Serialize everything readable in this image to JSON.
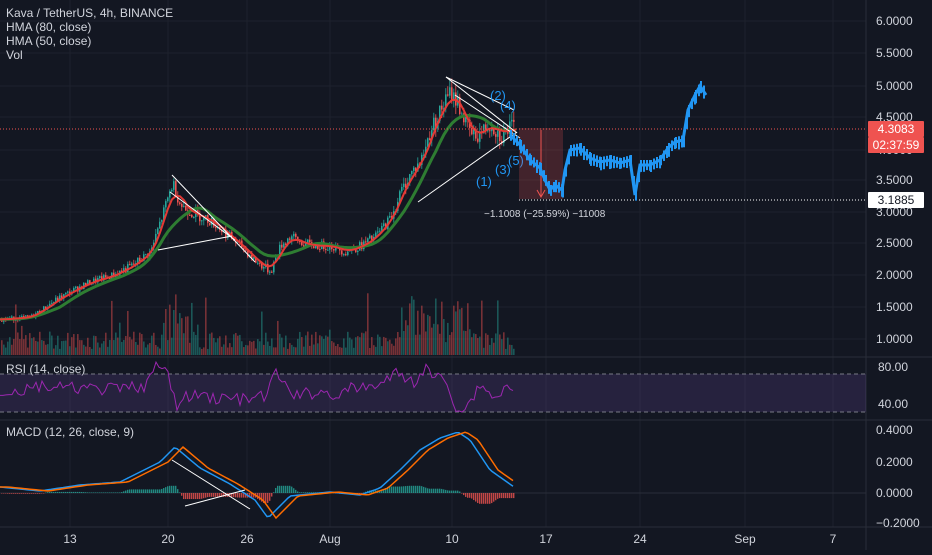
{
  "header": {
    "symbol_line": "Kava / TetherUS, 4h, BINANCE",
    "indicators": [
      "HMA (80, close)",
      "HMA (50, close)",
      "Vol"
    ]
  },
  "price_axis": {
    "ticks": [
      "6.0000",
      "5.5000",
      "5.0000",
      "4.5000",
      "4.0000",
      "3.5000",
      "3.0000",
      "2.5000",
      "2.0000",
      "1.5000",
      "1.0000"
    ],
    "current_price": "4.3083",
    "countdown": "02:37:59",
    "target_price": "3.1885"
  },
  "rsi": {
    "label": "RSI (14, close)",
    "ticks": [
      "80.00",
      "40.00"
    ]
  },
  "macd": {
    "label": "MACD (12, 26, close, 9)",
    "ticks": [
      "0.4000",
      "0.2000",
      "0.0000",
      "−0.2000"
    ]
  },
  "time_axis": {
    "ticks": [
      "13",
      "20",
      "26",
      "Aug",
      "10",
      "17",
      "24",
      "Sep",
      "7"
    ]
  },
  "annotations": {
    "measure_text": "−1.1008 (−25.59%) −11008",
    "waves": [
      "(1)",
      "(2)",
      "(3)",
      "(4)",
      "(5)"
    ]
  },
  "colors": {
    "background": "#131722",
    "up": "#26a69a",
    "down": "#ef5350",
    "hma80": "#2e7d32",
    "hma50": "#e53935",
    "projection": "#2196f3",
    "rsi": "#9c27b0",
    "macd": "#2196f3",
    "signal": "#ff6d00",
    "price_tag": "#ef5350"
  },
  "chart_data": {
    "type": "candlestick",
    "timeframe": "4h",
    "ylim": [
      0.8,
      6.3
    ],
    "y_scale": "log",
    "description_series": [
      {
        "name": "HMA (80, close)"
      },
      {
        "name": "HMA (50, close)"
      }
    ],
    "key_levels": {
      "current": 4.3083,
      "target": 3.1885,
      "change": -1.1008,
      "change_pct": -25.59
    }
  }
}
